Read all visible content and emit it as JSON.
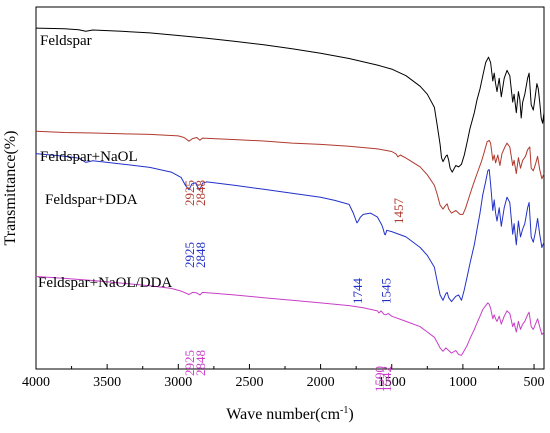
{
  "chart_data": {
    "type": "line",
    "title": "",
    "xlabel": "Wave number(cm",
    "xlabel_sup": "-1",
    "xlabel_close": ")",
    "ylabel": "Transmittance(%)",
    "xlim": [
      4000,
      430
    ],
    "x_reversed": true,
    "y_ticks_shown": false,
    "xticks": [
      4000,
      3500,
      3000,
      2500,
      2000,
      1500,
      1000,
      500
    ],
    "xtick_labels": [
      "4000",
      "3500",
      "3000",
      "2500",
      "2000",
      "1500",
      "1000",
      "500"
    ],
    "grid": false,
    "series": [
      {
        "name": "Feldspar",
        "color": "#000000",
        "points": [
          [
            4000,
            99
          ],
          [
            3800,
            98.8
          ],
          [
            3700,
            98.4
          ],
          [
            3650,
            97.8
          ],
          [
            3600,
            98.3
          ],
          [
            3400,
            97.8
          ],
          [
            3200,
            97.2
          ],
          [
            3000,
            96.2
          ],
          [
            2800,
            95.2
          ],
          [
            2600,
            94
          ],
          [
            2400,
            92.7
          ],
          [
            2200,
            91.2
          ],
          [
            2000,
            89.5
          ],
          [
            1800,
            87.5
          ],
          [
            1600,
            85
          ],
          [
            1500,
            83.5
          ],
          [
            1400,
            81
          ],
          [
            1300,
            77
          ],
          [
            1250,
            74
          ],
          [
            1200,
            69
          ],
          [
            1180,
            62
          ],
          [
            1160,
            55
          ],
          [
            1150,
            50
          ],
          [
            1140,
            48.5
          ],
          [
            1120,
            50.5
          ],
          [
            1110,
            51
          ],
          [
            1100,
            49
          ],
          [
            1090,
            46
          ],
          [
            1075,
            44.5
          ],
          [
            1050,
            47
          ],
          [
            1030,
            46.5
          ],
          [
            1010,
            47.5
          ],
          [
            990,
            51
          ],
          [
            970,
            56
          ],
          [
            950,
            61
          ],
          [
            920,
            67
          ],
          [
            900,
            72
          ],
          [
            880,
            76
          ],
          [
            860,
            81
          ],
          [
            840,
            86
          ],
          [
            820,
            88
          ],
          [
            805,
            86
          ],
          [
            790,
            79
          ],
          [
            780,
            82
          ],
          [
            770,
            78
          ],
          [
            760,
            75
          ],
          [
            745,
            80
          ],
          [
            730,
            73
          ],
          [
            710,
            80
          ],
          [
            690,
            83
          ],
          [
            670,
            81
          ],
          [
            650,
            71
          ],
          [
            640,
            74
          ],
          [
            625,
            67
          ],
          [
            610,
            75
          ],
          [
            600,
            72
          ],
          [
            590,
            65
          ],
          [
            580,
            71
          ],
          [
            565,
            74
          ],
          [
            545,
            80
          ],
          [
            535,
            82
          ],
          [
            520,
            70
          ],
          [
            505,
            68
          ],
          [
            495,
            72
          ],
          [
            480,
            78
          ],
          [
            470,
            76
          ],
          [
            460,
            71
          ],
          [
            450,
            65
          ],
          [
            440,
            63
          ],
          [
            430,
            67
          ]
        ]
      },
      {
        "name": "Feldspar+NaOL",
        "color": "#b03a2e",
        "points": [
          [
            4000,
            60
          ],
          [
            3800,
            59.5
          ],
          [
            3600,
            59.3
          ],
          [
            3400,
            59
          ],
          [
            3200,
            58.8
          ],
          [
            3000,
            58.2
          ],
          [
            2960,
            57.6
          ],
          [
            2925,
            56.2
          ],
          [
            2900,
            57.2
          ],
          [
            2870,
            57.6
          ],
          [
            2848,
            56.6
          ],
          [
            2830,
            57.4
          ],
          [
            2600,
            56.8
          ],
          [
            2400,
            56.3
          ],
          [
            2200,
            55.5
          ],
          [
            2000,
            55
          ],
          [
            1800,
            54.3
          ],
          [
            1600,
            53.3
          ],
          [
            1500,
            52.3
          ],
          [
            1470,
            51.4
          ],
          [
            1457,
            50.3
          ],
          [
            1440,
            51
          ],
          [
            1400,
            49.8
          ],
          [
            1300,
            46.5
          ],
          [
            1250,
            43.5
          ],
          [
            1200,
            39.5
          ],
          [
            1180,
            36
          ],
          [
            1160,
            32
          ],
          [
            1140,
            30.5
          ],
          [
            1120,
            32
          ],
          [
            1110,
            32.5
          ],
          [
            1100,
            30.5
          ],
          [
            1080,
            29
          ],
          [
            1050,
            30
          ],
          [
            1020,
            28.5
          ],
          [
            1000,
            28.5
          ],
          [
            980,
            31
          ],
          [
            960,
            34.5
          ],
          [
            930,
            39.5
          ],
          [
            900,
            44
          ],
          [
            870,
            48.5
          ],
          [
            850,
            52
          ],
          [
            830,
            56
          ],
          [
            815,
            56.5
          ],
          [
            805,
            55.5
          ],
          [
            790,
            49
          ],
          [
            780,
            51
          ],
          [
            770,
            48
          ],
          [
            755,
            51
          ],
          [
            740,
            47
          ],
          [
            725,
            51.5
          ],
          [
            705,
            54
          ],
          [
            690,
            55.5
          ],
          [
            670,
            54
          ],
          [
            650,
            47
          ],
          [
            640,
            49
          ],
          [
            625,
            44
          ],
          [
            610,
            50
          ],
          [
            595,
            46
          ],
          [
            580,
            49
          ],
          [
            560,
            50.5
          ],
          [
            545,
            53
          ],
          [
            530,
            54
          ],
          [
            520,
            46
          ],
          [
            505,
            45
          ],
          [
            490,
            47.5
          ],
          [
            475,
            50.5
          ],
          [
            460,
            45.5
          ],
          [
            445,
            42
          ],
          [
            430,
            44
          ]
        ]
      },
      {
        "name": "Feldspar+DDA",
        "color": "#2231c8",
        "points": [
          [
            4000,
            51.5
          ],
          [
            3800,
            50.5
          ],
          [
            3700,
            49.8
          ],
          [
            3650,
            48.2
          ],
          [
            3600,
            48.8
          ],
          [
            3400,
            47.6
          ],
          [
            3200,
            46.3
          ],
          [
            3050,
            44.5
          ],
          [
            2980,
            42.5
          ],
          [
            2950,
            39.5
          ],
          [
            2925,
            37.8
          ],
          [
            2905,
            40
          ],
          [
            2880,
            40.5
          ],
          [
            2860,
            38.5
          ],
          [
            2848,
            37.8
          ],
          [
            2830,
            40.3
          ],
          [
            2800,
            40.8
          ],
          [
            2600,
            39.5
          ],
          [
            2400,
            38
          ],
          [
            2200,
            36.5
          ],
          [
            2000,
            35
          ],
          [
            1900,
            33.8
          ],
          [
            1800,
            32.3
          ],
          [
            1770,
            29
          ],
          [
            1750,
            26
          ],
          [
            1744,
            25.3
          ],
          [
            1735,
            26
          ],
          [
            1720,
            27.5
          ],
          [
            1700,
            28.5
          ],
          [
            1650,
            29
          ],
          [
            1600,
            27.5
          ],
          [
            1570,
            24.5
          ],
          [
            1560,
            23
          ],
          [
            1550,
            21
          ],
          [
            1545,
            20.8
          ],
          [
            1535,
            22.5
          ],
          [
            1500,
            22
          ],
          [
            1400,
            20
          ],
          [
            1300,
            16
          ],
          [
            1250,
            13
          ],
          [
            1200,
            8.5
          ],
          [
            1180,
            3
          ],
          [
            1160,
            -2
          ],
          [
            1140,
            -4
          ],
          [
            1120,
            -1.5
          ],
          [
            1110,
            -1
          ],
          [
            1100,
            -3
          ],
          [
            1080,
            -4.5
          ],
          [
            1050,
            -2.5
          ],
          [
            1030,
            -2
          ],
          [
            1010,
            -4
          ],
          [
            990,
            0
          ],
          [
            970,
            5
          ],
          [
            950,
            10
          ],
          [
            920,
            17
          ],
          [
            900,
            23
          ],
          [
            880,
            29
          ],
          [
            860,
            36
          ],
          [
            840,
            41
          ],
          [
            825,
            45
          ],
          [
            815,
            45.5
          ],
          [
            805,
            40
          ],
          [
            790,
            30
          ],
          [
            780,
            34
          ],
          [
            770,
            29
          ],
          [
            760,
            26
          ],
          [
            745,
            31
          ],
          [
            730,
            24
          ],
          [
            710,
            31
          ],
          [
            690,
            35
          ],
          [
            670,
            33
          ],
          [
            650,
            21
          ],
          [
            640,
            25
          ],
          [
            625,
            17
          ],
          [
            610,
            26
          ],
          [
            595,
            20
          ],
          [
            580,
            23
          ],
          [
            565,
            25
          ],
          [
            545,
            31
          ],
          [
            535,
            33
          ],
          [
            520,
            20
          ],
          [
            505,
            18
          ],
          [
            490,
            22
          ],
          [
            475,
            27
          ],
          [
            460,
            21
          ],
          [
            445,
            16
          ],
          [
            430,
            18
          ]
        ]
      },
      {
        "name": "Feldspar+NaOL/DDA",
        "color": "#c83ec8",
        "points": [
          [
            4000,
            5
          ],
          [
            3800,
            4.3
          ],
          [
            3600,
            3.5
          ],
          [
            3400,
            2.5
          ],
          [
            3200,
            1.5
          ],
          [
            3050,
            0.5
          ],
          [
            2980,
            -0.5
          ],
          [
            2925,
            -1.8
          ],
          [
            2900,
            -1
          ],
          [
            2870,
            -1.2
          ],
          [
            2848,
            -2
          ],
          [
            2830,
            -1
          ],
          [
            2600,
            -2
          ],
          [
            2400,
            -3
          ],
          [
            2200,
            -4
          ],
          [
            2000,
            -5
          ],
          [
            1800,
            -6
          ],
          [
            1700,
            -6.8
          ],
          [
            1600,
            -8
          ],
          [
            1590,
            -8.8
          ],
          [
            1575,
            -8
          ],
          [
            1555,
            -9.3
          ],
          [
            1542,
            -9.5
          ],
          [
            1525,
            -9
          ],
          [
            1500,
            -10
          ],
          [
            1400,
            -12
          ],
          [
            1300,
            -14
          ],
          [
            1250,
            -16
          ],
          [
            1200,
            -18
          ],
          [
            1180,
            -20
          ],
          [
            1160,
            -22
          ],
          [
            1140,
            -23.3
          ],
          [
            1120,
            -22
          ],
          [
            1100,
            -23
          ],
          [
            1080,
            -24
          ],
          [
            1050,
            -23
          ],
          [
            1030,
            -24.5
          ],
          [
            1010,
            -24.8
          ],
          [
            990,
            -23
          ],
          [
            970,
            -21
          ],
          [
            950,
            -18.5
          ],
          [
            920,
            -15
          ],
          [
            900,
            -12.5
          ],
          [
            880,
            -10
          ],
          [
            860,
            -7.5
          ],
          [
            840,
            -6
          ],
          [
            825,
            -5
          ],
          [
            815,
            -5.5
          ],
          [
            805,
            -7
          ],
          [
            790,
            -11
          ],
          [
            780,
            -9.5
          ],
          [
            770,
            -11
          ],
          [
            760,
            -12
          ],
          [
            745,
            -10
          ],
          [
            730,
            -13
          ],
          [
            710,
            -10
          ],
          [
            690,
            -8
          ],
          [
            670,
            -9
          ],
          [
            650,
            -14
          ],
          [
            640,
            -12.5
          ],
          [
            625,
            -16
          ],
          [
            610,
            -12
          ],
          [
            595,
            -15
          ],
          [
            580,
            -13
          ],
          [
            565,
            -12
          ],
          [
            545,
            -9.5
          ],
          [
            535,
            -8.5
          ],
          [
            520,
            -14
          ],
          [
            505,
            -15
          ],
          [
            490,
            -13
          ],
          [
            475,
            -11
          ],
          [
            460,
            -14
          ],
          [
            445,
            -17
          ],
          [
            430,
            -16
          ]
        ]
      }
    ],
    "series_labels": [
      "Feldspar",
      "Feldspar+NaOL",
      "Feldspar+DDA",
      "Feldspar+NaOL/DDA"
    ],
    "annotations": [
      {
        "text": "2925",
        "x": 2925,
        "color": "#b03a2e"
      },
      {
        "text": "2848",
        "x": 2848,
        "color": "#b03a2e"
      },
      {
        "text": "1457",
        "x": 1457,
        "color": "#b03a2e"
      },
      {
        "text": "2925",
        "x": 2925,
        "color": "#2231c8"
      },
      {
        "text": "2848",
        "x": 2848,
        "color": "#2231c8"
      },
      {
        "text": "1744",
        "x": 1744,
        "color": "#2231c8"
      },
      {
        "text": "1545",
        "x": 1545,
        "color": "#2231c8"
      },
      {
        "text": "2925",
        "x": 2925,
        "color": "#c83ec8"
      },
      {
        "text": "2848",
        "x": 2848,
        "color": "#c83ec8"
      },
      {
        "text": "1590",
        "x": 1590,
        "color": "#c83ec8"
      },
      {
        "text": "1542",
        "x": 1542,
        "color": "#c83ec8"
      }
    ]
  }
}
